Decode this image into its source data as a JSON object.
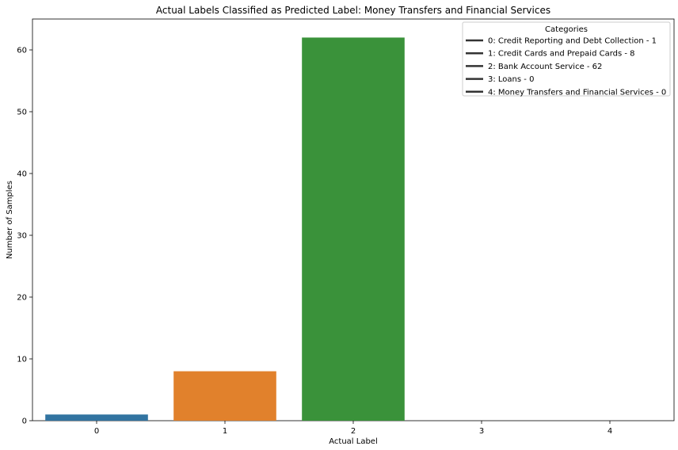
{
  "chart_data": {
    "type": "bar",
    "title": "Actual Labels Classified as Predicted Label: Money Transfers and Financial Services",
    "xlabel": "Actual Label",
    "ylabel": "Number of Samples",
    "categories": [
      "0",
      "1",
      "2",
      "3",
      "4"
    ],
    "values": [
      1,
      8,
      62,
      0,
      0
    ],
    "colors": [
      "#3274a1",
      "#e1812c",
      "#3a923a",
      "#c03d3e",
      "#9372b2"
    ],
    "ylim": [
      0,
      65
    ],
    "yticks": [
      0,
      10,
      20,
      30,
      40,
      50,
      60
    ],
    "grid": false,
    "legend": {
      "title": "Categories",
      "placement": "top-right",
      "entries": [
        "0: Credit Reporting and Debt Collection - 1",
        "1: Credit Cards and Prepaid Cards - 8",
        "2: Bank Account Service - 62",
        "3: Loans - 0",
        "4: Money Transfers and Financial Services - 0"
      ],
      "line_color": "#333333"
    }
  }
}
